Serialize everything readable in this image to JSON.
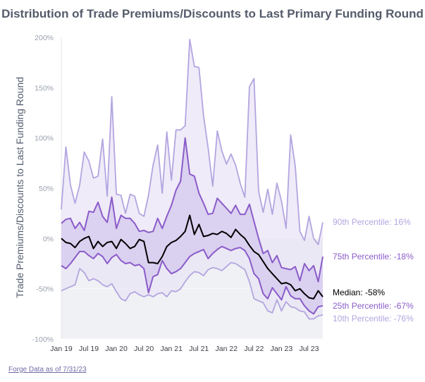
{
  "chart_data": {
    "type": "area",
    "title": "Distribution of Trade Premiums/Discounts to Last Primary Funding Round",
    "xlabel": "",
    "ylabel": "Trade Premiums/Discounts to Last Funding Round",
    "ylim": [
      -100,
      200
    ],
    "yticks": [
      "200%",
      "150%",
      "100%",
      "50%",
      "0%",
      "-50%",
      "-100%"
    ],
    "xticks": [
      "Jan 19",
      "Jul 19",
      "Jan 20",
      "Jul 20",
      "Jan 21",
      "Jul 21",
      "Jan 22",
      "Jul 22",
      "Jan 23",
      "Jul 23"
    ],
    "x_start": "2019-01",
    "x_end": "2023-07",
    "legend": "end-labels-right",
    "source": "Forge Data as of 7/31/23",
    "colors": {
      "p90": "#b3a5e0",
      "p75": "#8a5cc9",
      "median": "#000000",
      "p25": "#8a5cc9",
      "p10": "#b3a5e0",
      "band_outer": "#e9e4f6",
      "band_inner": "#d4c8ee",
      "negative_bg": "#f0f1f4"
    },
    "series": [
      {
        "name": "90th Percentile",
        "end_label": "90th Percentile: 16%",
        "values": [
          29,
          91,
          53,
          35,
          53,
          86,
          77,
          60,
          62,
          99,
          42,
          141,
          44,
          43,
          25,
          44,
          42,
          25,
          22,
          43,
          73,
          93,
          45,
          106,
          58,
          108,
          108,
          112,
          198,
          171,
          170,
          122,
          90,
          52,
          107,
          87,
          74,
          84,
          73,
          55,
          41,
          151,
          159,
          47,
          26,
          49,
          24,
          55,
          37,
          10,
          103,
          72,
          7,
          -2,
          22,
          0,
          -6,
          16
        ]
      },
      {
        "name": "75th Percentile",
        "end_label": "75th Percentile: -18%",
        "values": [
          15,
          19,
          20,
          10,
          16,
          8,
          27,
          26,
          36,
          22,
          16,
          41,
          10,
          23,
          20,
          20,
          15,
          7,
          8,
          6,
          7,
          20,
          10,
          22,
          33,
          48,
          57,
          100,
          64,
          62,
          45,
          35,
          24,
          25,
          40,
          35,
          30,
          25,
          33,
          24,
          24,
          34,
          17,
          0,
          -15,
          -12,
          -24,
          -17,
          -29,
          -30,
          -31,
          -28,
          -42,
          -25,
          -32,
          -27,
          -43,
          -18
        ]
      },
      {
        "name": "Median",
        "end_label": "Median: -58%",
        "values": [
          0,
          -4,
          -5,
          -9,
          -3,
          0,
          2,
          -10,
          -3,
          -8,
          -4,
          -3,
          -10,
          -1,
          -5,
          -10,
          -8,
          -1,
          -3,
          -24,
          -24,
          -25,
          -18,
          -8,
          -4,
          -2,
          2,
          7,
          23,
          4,
          14,
          2,
          3,
          5,
          4,
          7,
          5,
          1,
          9,
          4,
          0,
          -7,
          -13,
          -16,
          -23,
          -30,
          -35,
          -40,
          -45,
          -44,
          -46,
          -52,
          -50,
          -55,
          -59,
          -60,
          -52,
          -58
        ]
      },
      {
        "name": "25th Percentile",
        "end_label": "25th Percentile: -67%",
        "values": [
          -27,
          -30,
          -25,
          -19,
          -13,
          -13,
          -17,
          -20,
          -15,
          -18,
          -25,
          -19,
          -16,
          -22,
          -25,
          -24,
          -27,
          -26,
          -30,
          -54,
          -38,
          -36,
          -22,
          -30,
          -35,
          -33,
          -30,
          -24,
          -18,
          -15,
          -13,
          -11,
          -20,
          -15,
          -11,
          -8,
          -10,
          -12,
          -10,
          -9,
          -12,
          -20,
          -35,
          -40,
          -55,
          -60,
          -49,
          -55,
          -61,
          -48,
          -57,
          -60,
          -60,
          -67,
          -72,
          -75,
          -68,
          -67
        ]
      },
      {
        "name": "10th Percentile",
        "end_label": "10th Percentile: -76%",
        "values": [
          -52,
          -50,
          -48,
          -46,
          -30,
          -34,
          -42,
          -40,
          -42,
          -46,
          -48,
          -45,
          -53,
          -60,
          -62,
          -55,
          -53,
          -56,
          -58,
          -56,
          -58,
          -55,
          -54,
          -58,
          -52,
          -53,
          -50,
          -43,
          -37,
          -33,
          -34,
          -37,
          -31,
          -29,
          -30,
          -32,
          -28,
          -24,
          -25,
          -28,
          -31,
          -43,
          -60,
          -62,
          -64,
          -72,
          -74,
          -61,
          -72,
          -63,
          -68,
          -69,
          -72,
          -73,
          -80,
          -80,
          -77,
          -76
        ]
      }
    ]
  }
}
